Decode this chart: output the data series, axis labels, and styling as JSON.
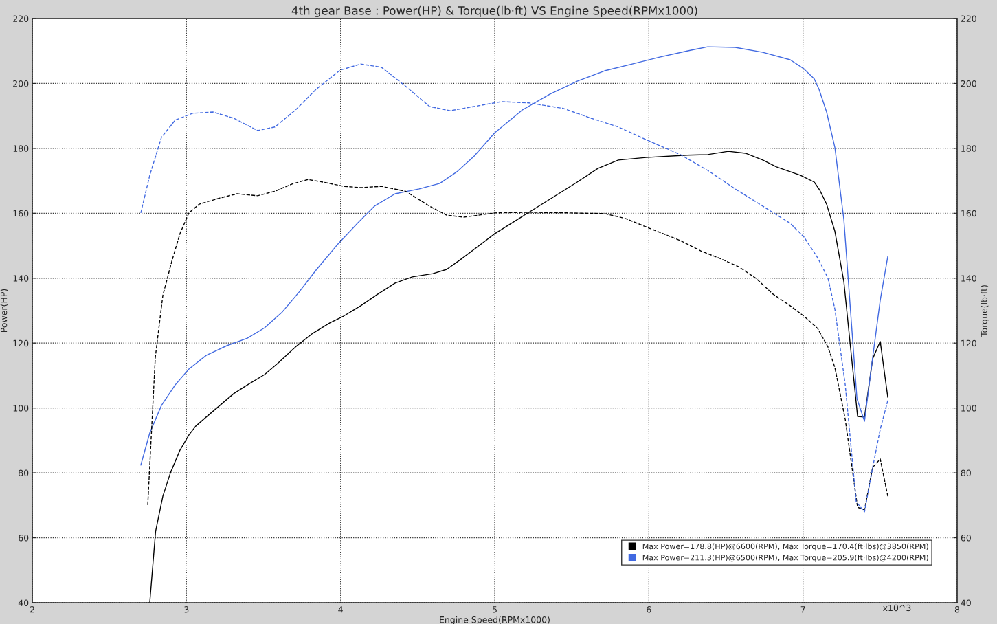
{
  "chart_data": {
    "type": "line",
    "title": "4th gear Base : Power(HP) & Torque(lb·ft) VS Engine Speed(RPMx1000)",
    "xlabel": "Engine Speed(RPMx1000)",
    "ylabel": "Power(HP)",
    "y2label": "Torque(lb·ft)",
    "xlim": [
      2,
      8
    ],
    "xticks": [
      2,
      3,
      4,
      5,
      6,
      7,
      8
    ],
    "ylim": [
      40,
      220
    ],
    "yticks": [
      40,
      60,
      80,
      100,
      120,
      140,
      160,
      180,
      200,
      220
    ],
    "y2lim": [
      40,
      220
    ],
    "y2ticks": [
      40,
      60,
      80,
      100,
      120,
      140,
      160,
      180,
      200,
      220
    ],
    "grid": true,
    "legend": "bottom right",
    "marker": "none",
    "annotations": [
      "x10^3"
    ],
    "series": [
      {
        "name": "Max Power=178.8(HP)@6600(RPM), Max Torque=170.4(ft·lbs)@3850(RPM)",
        "color": "#000000",
        "line_style": "solid",
        "x": [
          2.762,
          2.8,
          2.847,
          2.896,
          2.958,
          3.016,
          3.06,
          3.128,
          3.217,
          3.306,
          3.395,
          3.507,
          3.596,
          3.707,
          3.819,
          3.93,
          4.019,
          4.131,
          4.242,
          4.354,
          4.465,
          4.599,
          4.688,
          4.777,
          4.911,
          5.0,
          5.178,
          5.357,
          5.535,
          5.669,
          5.802,
          5.981,
          6.248,
          6.382,
          6.516,
          6.627,
          6.739,
          6.828,
          6.984,
          7.073,
          7.109,
          7.153,
          7.207,
          7.265,
          7.354,
          7.399,
          7.452,
          7.501,
          7.55
        ],
        "values": [
          40,
          62,
          72.8,
          80,
          87,
          91.7,
          94.4,
          97.2,
          100.8,
          104.4,
          107.1,
          110.3,
          113.9,
          118.8,
          123,
          126.2,
          128.3,
          131.5,
          135.1,
          138.5,
          140.4,
          141.4,
          142.7,
          145.7,
          150.5,
          153.7,
          159,
          164.3,
          169.6,
          173.8,
          176.4,
          177.2,
          177.9,
          178.1,
          179.1,
          178.5,
          176.4,
          174.3,
          171.7,
          169.6,
          167.1,
          162.8,
          154.4,
          138.9,
          97.4,
          97.2,
          115.2,
          120.5,
          103.3
        ]
      },
      {
        "color": "#000000",
        "line_style": "dashed",
        "axis": "y2",
        "x": [
          2.749,
          2.798,
          2.847,
          2.905,
          2.958,
          3.016,
          3.083,
          3.217,
          3.329,
          3.462,
          3.574,
          3.685,
          3.788,
          3.886,
          4.019,
          4.131,
          4.265,
          4.421,
          4.577,
          4.688,
          4.8,
          5.0,
          5.223,
          5.49,
          5.713,
          5.847,
          6.003,
          6.204,
          6.337,
          6.471,
          6.583,
          6.694,
          6.805,
          6.917,
          7.006,
          7.095,
          7.162,
          7.207,
          7.274,
          7.354,
          7.399,
          7.452,
          7.501,
          7.55
        ],
        "values": [
          70.1,
          115.6,
          134.7,
          145.2,
          153.7,
          160.1,
          162.8,
          164.7,
          166,
          165.4,
          166.8,
          169,
          170.4,
          169.6,
          168.3,
          167.9,
          168.3,
          166.8,
          162.2,
          159.4,
          158.8,
          160.1,
          160.3,
          160.1,
          159.9,
          158.4,
          155.4,
          151.6,
          148.4,
          145.9,
          143.5,
          140,
          135.1,
          131.5,
          128.3,
          124.5,
          118.8,
          112.4,
          96.5,
          69.4,
          68.6,
          81.7,
          84.3,
          72.8
        ]
      },
      {
        "name": "Max Power=211.3(HP)@6500(RPM), Max Torque=205.9(ft·lbs)@4200(RPM)",
        "color": "#4169e1",
        "line_style": "solid",
        "x": [
          2.704,
          2.762,
          2.838,
          2.927,
          3.016,
          3.128,
          3.262,
          3.395,
          3.507,
          3.618,
          3.73,
          3.841,
          3.975,
          4.109,
          4.22,
          4.354,
          4.51,
          4.644,
          4.755,
          4.866,
          5.0,
          5.178,
          5.357,
          5.535,
          5.713,
          5.892,
          6.07,
          6.248,
          6.382,
          6.56,
          6.739,
          6.917,
          7.006,
          7.073,
          7.104,
          7.153,
          7.207,
          7.265,
          7.35,
          7.399,
          7.452,
          7.501,
          7.55
        ],
        "values": [
          82.4,
          92.3,
          100.8,
          107.1,
          112,
          116.2,
          119.2,
          121.5,
          124.7,
          129.4,
          135.7,
          142.5,
          150.1,
          156.9,
          162.2,
          166,
          167.5,
          169.2,
          172.8,
          177.6,
          184.8,
          191.8,
          196.7,
          200.7,
          203.9,
          206,
          208.1,
          210,
          211.3,
          211.1,
          209.6,
          207.3,
          204.5,
          201.4,
          198.2,
          191.2,
          180.2,
          158,
          102.9,
          95.9,
          115.6,
          133.2,
          146.7
        ]
      },
      {
        "color": "#4169e1",
        "line_style": "dashed",
        "axis": "y2",
        "x": [
          2.704,
          2.762,
          2.838,
          2.927,
          3.039,
          3.172,
          3.306,
          3.462,
          3.574,
          3.707,
          3.841,
          3.997,
          4.131,
          4.265,
          4.421,
          4.577,
          4.711,
          4.866,
          5.045,
          5.223,
          5.446,
          5.624,
          5.802,
          5.981,
          6.204,
          6.382,
          6.56,
          6.739,
          6.917,
          7.006,
          7.095,
          7.162,
          7.207,
          7.274,
          7.345,
          7.399,
          7.452,
          7.501,
          7.55
        ],
        "values": [
          160.1,
          171.7,
          183.4,
          188.7,
          190.8,
          191.2,
          189.3,
          185.5,
          186.6,
          191.8,
          198.2,
          204.1,
          206,
          205,
          199.2,
          192.9,
          191.6,
          192.9,
          194.4,
          194,
          192.3,
          189.3,
          186.6,
          182.7,
          178.1,
          173.2,
          167.5,
          162.2,
          156.9,
          152.7,
          146.3,
          140,
          130.4,
          107.1,
          71.1,
          68,
          81.7,
          93.4,
          102.3
        ]
      }
    ]
  }
}
